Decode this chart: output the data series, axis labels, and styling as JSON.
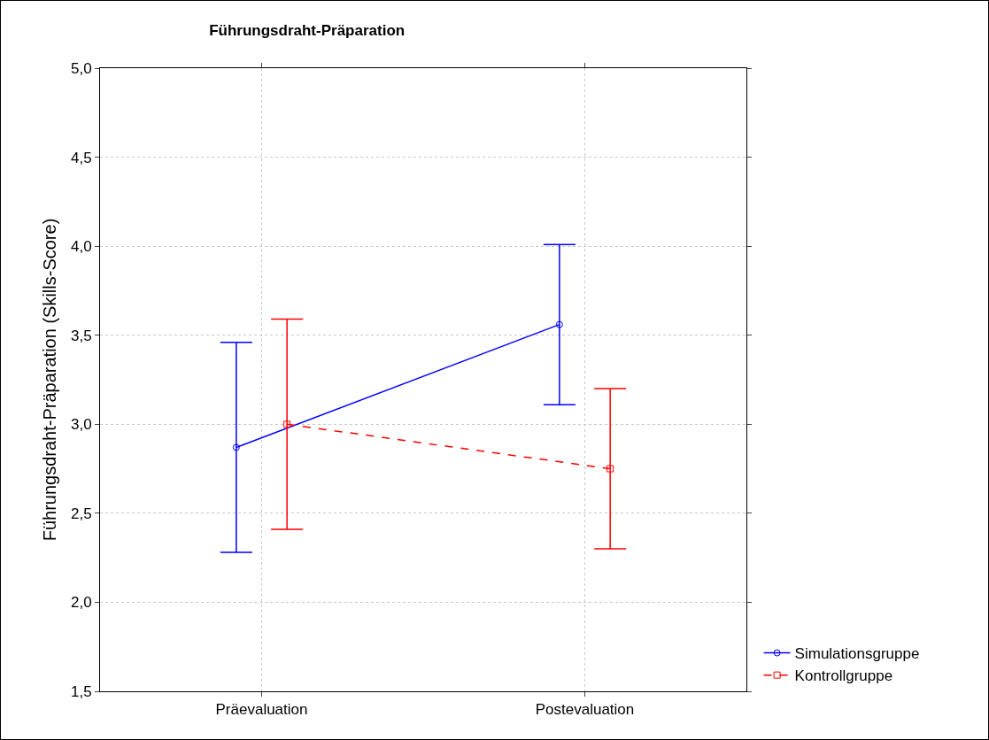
{
  "chart_data": {
    "type": "line",
    "title": "Führungsdraht-Präparation",
    "ylabel": "Führungsdraht-Präparation (Skills-Score)",
    "categories": [
      "Präevaluation",
      "Postevaluation"
    ],
    "series": [
      {
        "name": "Simulationsgruppe",
        "color": "#0000ff",
        "values": [
          2.87,
          3.56
        ],
        "errors": [
          [
            2.28,
            3.46
          ],
          [
            3.11,
            4.01
          ]
        ],
        "marker": "circle",
        "line_style": "solid"
      },
      {
        "name": "Kontrollgruppe",
        "color": "#ff0000",
        "values": [
          3.0,
          2.75
        ],
        "errors": [
          [
            2.41,
            3.59
          ],
          [
            2.3,
            3.2
          ]
        ],
        "marker": "square",
        "line_style": "dashed"
      }
    ],
    "ylim": [
      1.5,
      5.0
    ],
    "yticks": [
      {
        "value": 1.5,
        "label": "1,5"
      },
      {
        "value": 2.0,
        "label": "2,0"
      },
      {
        "value": 2.5,
        "label": "2,5"
      },
      {
        "value": 3.0,
        "label": "3,0"
      },
      {
        "value": 3.5,
        "label": "3,5"
      },
      {
        "value": 4.0,
        "label": "4,0"
      },
      {
        "value": 4.5,
        "label": "4,5"
      },
      {
        "value": 5.0,
        "label": "5,0"
      }
    ],
    "grid": true,
    "legend": "bottom right"
  }
}
